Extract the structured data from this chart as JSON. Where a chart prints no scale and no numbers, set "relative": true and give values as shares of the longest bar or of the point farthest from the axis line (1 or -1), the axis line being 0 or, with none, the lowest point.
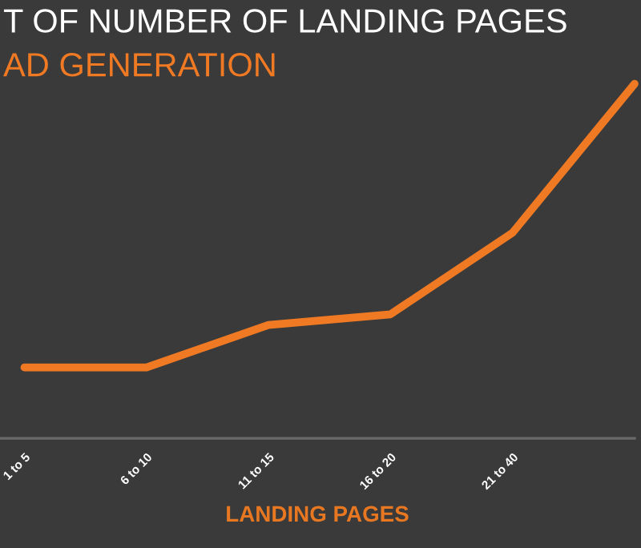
{
  "chart_data": {
    "type": "line",
    "title": "T OF NUMBER OF LANDING PAGES",
    "subtitle": "AD GENERATION",
    "xlabel": "LANDING PAGES",
    "categories": [
      "1 to 5",
      "6 to 10",
      "11 to 15",
      "16 to 20",
      "21 to 40",
      null
    ],
    "series": [
      {
        "color": "#f07a24",
        "values": [
          0.2,
          0.2,
          0.32,
          0.35,
          0.58,
          1
        ]
      }
    ],
    "relative": true,
    "grid": false,
    "legend": false,
    "marker": "none",
    "line_style": "solid"
  }
}
